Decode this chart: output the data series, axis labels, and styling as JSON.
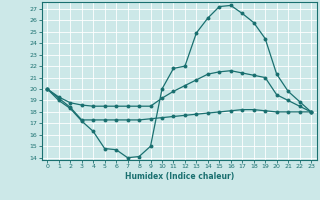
{
  "xlabel": "Humidex (Indice chaleur)",
  "background_color": "#cce8e8",
  "grid_color": "#ffffff",
  "line_color": "#1a7070",
  "xlim": [
    -0.5,
    23.5
  ],
  "ylim": [
    13.8,
    27.6
  ],
  "xticks": [
    0,
    1,
    2,
    3,
    4,
    5,
    6,
    7,
    8,
    9,
    10,
    11,
    12,
    13,
    14,
    15,
    16,
    17,
    18,
    19,
    20,
    21,
    22,
    23
  ],
  "yticks": [
    14,
    15,
    16,
    17,
    18,
    19,
    20,
    21,
    22,
    23,
    24,
    25,
    26,
    27
  ],
  "line1_x": [
    0,
    1,
    2,
    3,
    4,
    5,
    6,
    7,
    8,
    9,
    10,
    11,
    12,
    13,
    14,
    15,
    16,
    17,
    18,
    19,
    20,
    21,
    22,
    23
  ],
  "line1_y": [
    20.0,
    19.0,
    18.3,
    17.2,
    16.3,
    14.8,
    14.7,
    14.0,
    14.1,
    15.0,
    20.0,
    21.8,
    22.0,
    24.9,
    26.2,
    27.2,
    27.3,
    26.6,
    25.8,
    24.4,
    21.3,
    19.8,
    18.9,
    18.0
  ],
  "line2_x": [
    0,
    1,
    2,
    3,
    4,
    5,
    6,
    7,
    8,
    9,
    10,
    11,
    12,
    13,
    14,
    15,
    16,
    17,
    18,
    19,
    20,
    21,
    22,
    23
  ],
  "line2_y": [
    20.0,
    19.2,
    18.4,
    17.3,
    17.3,
    17.3,
    17.3,
    17.3,
    17.3,
    17.4,
    17.5,
    17.6,
    17.7,
    17.8,
    17.9,
    18.0,
    18.1,
    18.2,
    18.2,
    18.1,
    18.0,
    18.0,
    18.0,
    18.0
  ],
  "line3_x": [
    0,
    1,
    2,
    3,
    4,
    5,
    6,
    7,
    8,
    9,
    10,
    11,
    12,
    13,
    14,
    15,
    16,
    17,
    18,
    19,
    20,
    21,
    22,
    23
  ],
  "line3_y": [
    20.0,
    19.3,
    18.8,
    18.6,
    18.5,
    18.5,
    18.5,
    18.5,
    18.5,
    18.5,
    19.2,
    19.8,
    20.3,
    20.8,
    21.3,
    21.5,
    21.6,
    21.4,
    21.2,
    21.0,
    19.5,
    19.0,
    18.5,
    18.0
  ]
}
